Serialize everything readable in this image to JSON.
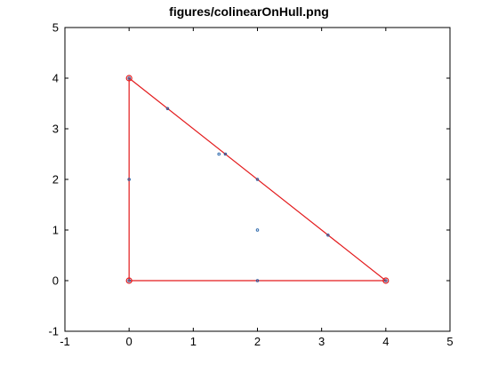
{
  "chart_data": {
    "type": "scatter",
    "title": "figures/colinearOnHull.png",
    "xlabel": "",
    "ylabel": "",
    "xlim": [
      -1,
      5
    ],
    "ylim": [
      -1,
      5
    ],
    "x_ticks": [
      "-1",
      "0",
      "1",
      "2",
      "3",
      "4",
      "5"
    ],
    "y_ticks": [
      "-1",
      "0",
      "1",
      "2",
      "3",
      "4",
      "5"
    ],
    "grid": false,
    "points": [
      {
        "x": 0,
        "y": 0
      },
      {
        "x": 4,
        "y": 0
      },
      {
        "x": 0,
        "y": 4
      },
      {
        "x": 0,
        "y": 2
      },
      {
        "x": 2,
        "y": 0
      },
      {
        "x": 2,
        "y": 2
      },
      {
        "x": 2,
        "y": 1
      },
      {
        "x": 1.4,
        "y": 2.5
      },
      {
        "x": 1.5,
        "y": 2.5
      },
      {
        "x": 0.6,
        "y": 3.4
      },
      {
        "x": 3.1,
        "y": 0.9
      }
    ],
    "hull": [
      {
        "x": 0,
        "y": 0
      },
      {
        "x": 4,
        "y": 0
      },
      {
        "x": 0,
        "y": 4
      }
    ],
    "colors": {
      "points": "#1f5fa6",
      "hull": "#e31a1c"
    }
  }
}
